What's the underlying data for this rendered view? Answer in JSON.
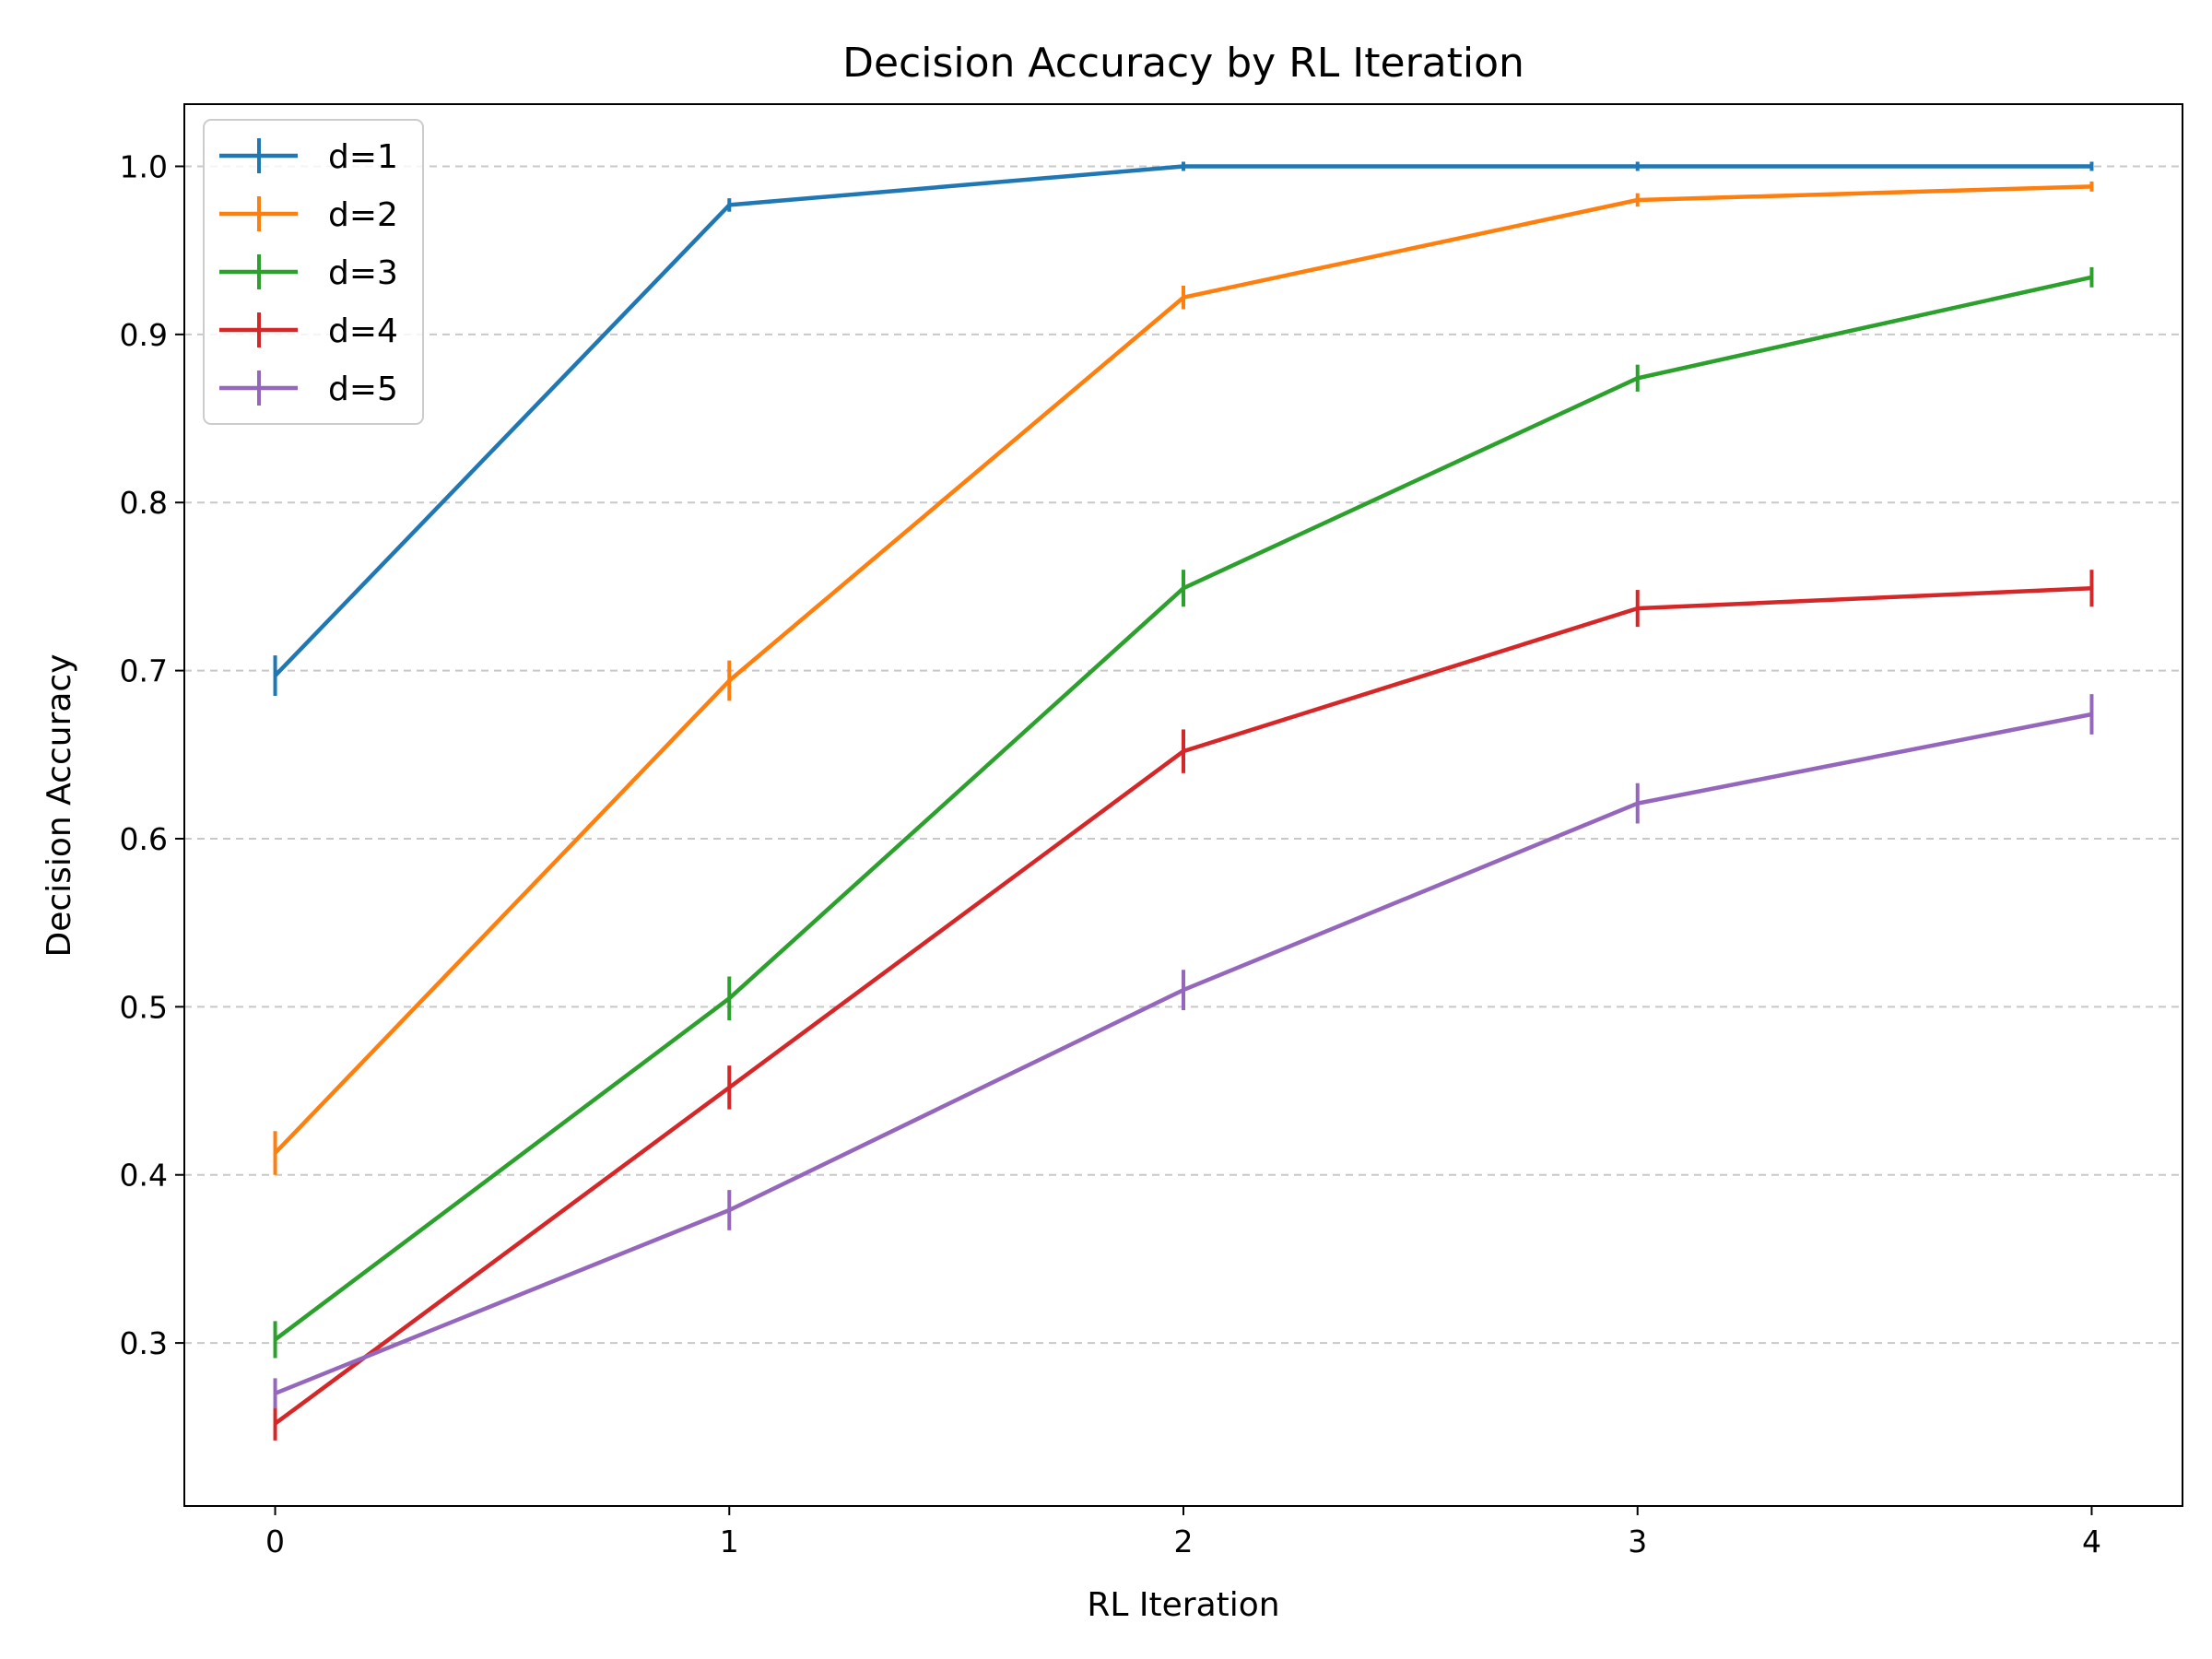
{
  "chart_data": {
    "type": "line",
    "title": "Decision Accuracy by RL Iteration",
    "xlabel": "RL Iteration",
    "ylabel": "Decision Accuracy",
    "x": [
      0,
      1,
      2,
      3,
      4
    ],
    "xlim": [
      -0.2,
      4.2
    ],
    "ylim": [
      0.203,
      1.037
    ],
    "x_ticks": [
      "0",
      "1",
      "2",
      "3",
      "4"
    ],
    "y_ticks": [
      "0.3",
      "0.4",
      "0.5",
      "0.6",
      "0.7",
      "0.8",
      "0.9",
      "1.0"
    ],
    "grid": "horizontal dashed",
    "legend_position": "top-left",
    "series": [
      {
        "name": "d=1",
        "color": "#1f77b4",
        "values": [
          0.697,
          0.977,
          1.0,
          1.0,
          1.0
        ],
        "errors": [
          0.012,
          0.004,
          0.0,
          0.0,
          0.0
        ]
      },
      {
        "name": "d=2",
        "color": "#ff7f0e",
        "values": [
          0.413,
          0.694,
          0.922,
          0.98,
          0.988
        ],
        "errors": [
          0.013,
          0.012,
          0.007,
          0.004,
          0.003
        ]
      },
      {
        "name": "d=3",
        "color": "#2ca02c",
        "values": [
          0.302,
          0.505,
          0.749,
          0.874,
          0.934
        ],
        "errors": [
          0.011,
          0.013,
          0.011,
          0.008,
          0.006
        ]
      },
      {
        "name": "d=4",
        "color": "#d62728",
        "values": [
          0.252,
          0.452,
          0.652,
          0.737,
          0.749
        ],
        "errors": [
          0.01,
          0.013,
          0.013,
          0.011,
          0.011
        ]
      },
      {
        "name": "d=5",
        "color": "#9467bd",
        "values": [
          0.27,
          0.379,
          0.51,
          0.621,
          0.674
        ],
        "errors": [
          0.009,
          0.012,
          0.012,
          0.012,
          0.012
        ]
      }
    ]
  }
}
